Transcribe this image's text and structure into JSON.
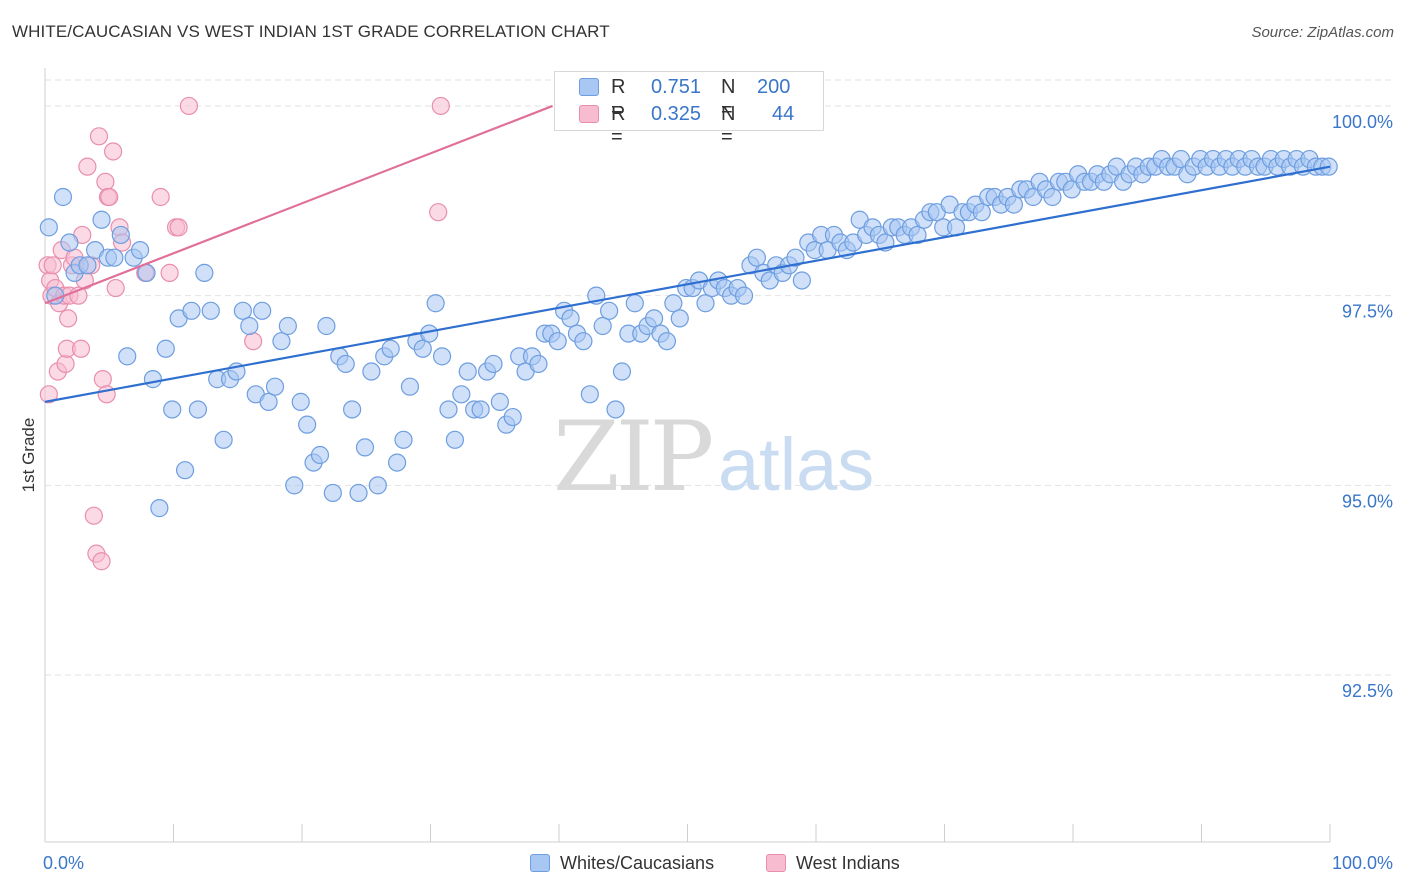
{
  "chart_data": {
    "type": "scatter",
    "title": "WHITE/CAUCASIAN VS WEST INDIAN 1ST GRADE CORRELATION CHART",
    "source": "Source: ZipAtlas.com",
    "ylabel": "1st Grade",
    "xlabel": "",
    "xlim": [
      0,
      100
    ],
    "ylim": [
      90.3,
      100.5
    ],
    "x_tick_labels": [
      "0.0%",
      "100.0%"
    ],
    "y_ticks": [
      92.5,
      95.0,
      97.5,
      100.0
    ],
    "y_tick_labels": [
      "92.5%",
      "95.0%",
      "97.5%",
      "100.0%"
    ],
    "watermark": "ZIPatlas",
    "legend_stats": [
      {
        "r_label": "R =",
        "r_value": "0.751",
        "n_label": "N =",
        "n_value": "200"
      },
      {
        "r_label": "R =",
        "r_value": "0.325",
        "n_label": "N =",
        "n_value": "44"
      }
    ],
    "colors": {
      "blue_fill": "#a8c7f2",
      "blue_stroke": "#6e9ee0",
      "blue_line": "#2f6fd0",
      "pink_fill": "#f7bcd0",
      "pink_stroke": "#e88fae",
      "pink_line": "#e0709a",
      "tick_label": "#3a76c9",
      "grid": "#e2e2e2"
    },
    "series": [
      {
        "name": "Whites/Caucasians",
        "trend": {
          "x": [
            0,
            100
          ],
          "y": [
            96.1,
            99.2
          ]
        },
        "points": [
          [
            0.3,
            98.4
          ],
          [
            0.8,
            97.5
          ],
          [
            1.4,
            98.8
          ],
          [
            1.9,
            98.2
          ],
          [
            2.3,
            97.8
          ],
          [
            2.7,
            97.9
          ],
          [
            3.3,
            97.9
          ],
          [
            3.9,
            98.1
          ],
          [
            4.4,
            98.5
          ],
          [
            4.9,
            98.0
          ],
          [
            5.4,
            98.0
          ],
          [
            5.9,
            98.3
          ],
          [
            6.4,
            96.7
          ],
          [
            6.9,
            98.0
          ],
          [
            7.4,
            98.1
          ],
          [
            7.9,
            97.8
          ],
          [
            8.4,
            96.4
          ],
          [
            8.9,
            94.7
          ],
          [
            9.4,
            96.8
          ],
          [
            9.9,
            96.0
          ],
          [
            10.4,
            97.2
          ],
          [
            10.9,
            95.2
          ],
          [
            11.4,
            97.3
          ],
          [
            11.9,
            96.0
          ],
          [
            12.4,
            97.8
          ],
          [
            12.9,
            97.3
          ],
          [
            13.4,
            96.4
          ],
          [
            13.9,
            95.6
          ],
          [
            14.4,
            96.4
          ],
          [
            14.9,
            96.5
          ],
          [
            15.4,
            97.3
          ],
          [
            15.9,
            97.1
          ],
          [
            16.4,
            96.2
          ],
          [
            16.9,
            97.3
          ],
          [
            17.4,
            96.1
          ],
          [
            17.9,
            96.3
          ],
          [
            18.4,
            96.9
          ],
          [
            18.9,
            97.1
          ],
          [
            19.4,
            95.0
          ],
          [
            19.9,
            96.1
          ],
          [
            20.4,
            95.8
          ],
          [
            20.9,
            95.3
          ],
          [
            21.4,
            95.4
          ],
          [
            21.9,
            97.1
          ],
          [
            22.4,
            94.9
          ],
          [
            22.9,
            96.7
          ],
          [
            23.4,
            96.6
          ],
          [
            23.9,
            96.0
          ],
          [
            24.4,
            94.9
          ],
          [
            24.9,
            95.5
          ],
          [
            25.4,
            96.5
          ],
          [
            25.9,
            95.0
          ],
          [
            26.4,
            96.7
          ],
          [
            26.9,
            96.8
          ],
          [
            27.4,
            95.3
          ],
          [
            27.9,
            95.6
          ],
          [
            28.4,
            96.3
          ],
          [
            28.9,
            96.9
          ],
          [
            29.4,
            96.8
          ],
          [
            29.9,
            97.0
          ],
          [
            30.4,
            97.4
          ],
          [
            30.9,
            96.7
          ],
          [
            31.4,
            96.0
          ],
          [
            31.9,
            95.6
          ],
          [
            32.4,
            96.2
          ],
          [
            32.9,
            96.5
          ],
          [
            33.4,
            96.0
          ],
          [
            33.9,
            96.0
          ],
          [
            34.4,
            96.5
          ],
          [
            34.9,
            96.6
          ],
          [
            35.4,
            96.1
          ],
          [
            35.9,
            95.8
          ],
          [
            36.4,
            95.9
          ],
          [
            36.9,
            96.7
          ],
          [
            37.4,
            96.5
          ],
          [
            37.9,
            96.7
          ],
          [
            38.4,
            96.6
          ],
          [
            38.9,
            97.0
          ],
          [
            39.4,
            97.0
          ],
          [
            39.9,
            96.9
          ],
          [
            40.4,
            97.3
          ],
          [
            40.9,
            97.2
          ],
          [
            41.4,
            97.0
          ],
          [
            41.9,
            96.9
          ],
          [
            42.4,
            96.2
          ],
          [
            42.9,
            97.5
          ],
          [
            43.4,
            97.1
          ],
          [
            43.9,
            97.3
          ],
          [
            44.4,
            96.0
          ],
          [
            44.9,
            96.5
          ],
          [
            45.4,
            97.0
          ],
          [
            45.9,
            97.4
          ],
          [
            46.4,
            97.0
          ],
          [
            46.9,
            97.1
          ],
          [
            47.4,
            97.2
          ],
          [
            47.9,
            97.0
          ],
          [
            48.4,
            96.9
          ],
          [
            48.9,
            97.4
          ],
          [
            49.4,
            97.2
          ],
          [
            49.9,
            97.6
          ],
          [
            50.4,
            97.6
          ],
          [
            50.9,
            97.7
          ],
          [
            51.4,
            97.4
          ],
          [
            51.9,
            97.6
          ],
          [
            52.4,
            97.7
          ],
          [
            52.9,
            97.6
          ],
          [
            53.4,
            97.5
          ],
          [
            53.9,
            97.6
          ],
          [
            54.4,
            97.5
          ],
          [
            54.9,
            97.9
          ],
          [
            55.4,
            98.0
          ],
          [
            55.9,
            97.8
          ],
          [
            56.4,
            97.7
          ],
          [
            56.9,
            97.9
          ],
          [
            57.4,
            97.8
          ],
          [
            57.9,
            97.9
          ],
          [
            58.4,
            98.0
          ],
          [
            58.9,
            97.7
          ],
          [
            59.4,
            98.2
          ],
          [
            59.9,
            98.1
          ],
          [
            60.4,
            98.3
          ],
          [
            60.9,
            98.1
          ],
          [
            61.4,
            98.3
          ],
          [
            61.9,
            98.2
          ],
          [
            62.4,
            98.1
          ],
          [
            62.9,
            98.2
          ],
          [
            63.4,
            98.5
          ],
          [
            63.9,
            98.3
          ],
          [
            64.4,
            98.4
          ],
          [
            64.9,
            98.3
          ],
          [
            65.4,
            98.2
          ],
          [
            65.9,
            98.4
          ],
          [
            66.4,
            98.4
          ],
          [
            66.9,
            98.3
          ],
          [
            67.4,
            98.4
          ],
          [
            67.9,
            98.3
          ],
          [
            68.4,
            98.5
          ],
          [
            68.9,
            98.6
          ],
          [
            69.4,
            98.6
          ],
          [
            69.9,
            98.4
          ],
          [
            70.4,
            98.7
          ],
          [
            70.9,
            98.4
          ],
          [
            71.4,
            98.6
          ],
          [
            71.9,
            98.6
          ],
          [
            72.4,
            98.7
          ],
          [
            72.9,
            98.6
          ],
          [
            73.4,
            98.8
          ],
          [
            73.9,
            98.8
          ],
          [
            74.4,
            98.7
          ],
          [
            74.9,
            98.8
          ],
          [
            75.4,
            98.7
          ],
          [
            75.9,
            98.9
          ],
          [
            76.4,
            98.9
          ],
          [
            76.9,
            98.8
          ],
          [
            77.4,
            99.0
          ],
          [
            77.9,
            98.9
          ],
          [
            78.4,
            98.8
          ],
          [
            78.9,
            99.0
          ],
          [
            79.4,
            99.0
          ],
          [
            79.9,
            98.9
          ],
          [
            80.4,
            99.1
          ],
          [
            80.9,
            99.0
          ],
          [
            81.4,
            99.0
          ],
          [
            81.9,
            99.1
          ],
          [
            82.4,
            99.0
          ],
          [
            82.9,
            99.1
          ],
          [
            83.4,
            99.2
          ],
          [
            83.9,
            99.0
          ],
          [
            84.4,
            99.1
          ],
          [
            84.9,
            99.2
          ],
          [
            85.4,
            99.1
          ],
          [
            85.9,
            99.2
          ],
          [
            86.4,
            99.2
          ],
          [
            86.9,
            99.3
          ],
          [
            87.4,
            99.2
          ],
          [
            87.9,
            99.2
          ],
          [
            88.4,
            99.3
          ],
          [
            88.9,
            99.1
          ],
          [
            89.4,
            99.2
          ],
          [
            89.9,
            99.3
          ],
          [
            90.4,
            99.2
          ],
          [
            90.9,
            99.3
          ],
          [
            91.4,
            99.2
          ],
          [
            91.9,
            99.3
          ],
          [
            92.4,
            99.2
          ],
          [
            92.9,
            99.3
          ],
          [
            93.4,
            99.2
          ],
          [
            93.9,
            99.3
          ],
          [
            94.4,
            99.2
          ],
          [
            94.9,
            99.2
          ],
          [
            95.4,
            99.3
          ],
          [
            95.9,
            99.2
          ],
          [
            96.4,
            99.3
          ],
          [
            96.9,
            99.2
          ],
          [
            97.4,
            99.3
          ],
          [
            97.9,
            99.2
          ],
          [
            98.4,
            99.3
          ],
          [
            98.9,
            99.2
          ],
          [
            99.4,
            99.2
          ],
          [
            99.9,
            99.2
          ]
        ]
      },
      {
        "name": "West Indians",
        "trend": {
          "x": [
            0,
            39.5
          ],
          "y": [
            97.4,
            100.0
          ]
        },
        "points": [
          [
            0.2,
            97.9
          ],
          [
            0.4,
            97.7
          ],
          [
            0.5,
            97.5
          ],
          [
            0.6,
            97.9
          ],
          [
            0.8,
            97.6
          ],
          [
            1.0,
            96.5
          ],
          [
            1.1,
            97.4
          ],
          [
            1.3,
            98.1
          ],
          [
            1.5,
            97.5
          ],
          [
            1.6,
            96.6
          ],
          [
            1.7,
            96.8
          ],
          [
            1.8,
            97.2
          ],
          [
            1.9,
            97.5
          ],
          [
            2.1,
            97.9
          ],
          [
            2.3,
            98.0
          ],
          [
            2.6,
            97.5
          ],
          [
            2.8,
            96.8
          ],
          [
            2.9,
            98.3
          ],
          [
            3.1,
            97.7
          ],
          [
            3.3,
            99.2
          ],
          [
            3.6,
            97.9
          ],
          [
            3.8,
            94.6
          ],
          [
            4.0,
            94.1
          ],
          [
            4.2,
            99.6
          ],
          [
            4.4,
            94.0
          ],
          [
            4.5,
            96.4
          ],
          [
            4.7,
            99.0
          ],
          [
            4.9,
            98.8
          ],
          [
            5.0,
            98.8
          ],
          [
            5.3,
            99.4
          ],
          [
            5.5,
            97.6
          ],
          [
            5.8,
            98.4
          ],
          [
            6.0,
            98.2
          ],
          [
            7.8,
            97.8
          ],
          [
            9.0,
            98.8
          ],
          [
            9.7,
            97.8
          ],
          [
            10.2,
            98.4
          ],
          [
            10.4,
            98.4
          ],
          [
            11.2,
            100.0
          ],
          [
            16.2,
            96.9
          ],
          [
            30.6,
            98.6
          ],
          [
            30.8,
            100.0
          ],
          [
            0.3,
            96.2
          ],
          [
            4.8,
            96.2
          ]
        ]
      }
    ]
  },
  "legend": {
    "items": [
      "Whites/Caucasians",
      "West Indians"
    ]
  }
}
